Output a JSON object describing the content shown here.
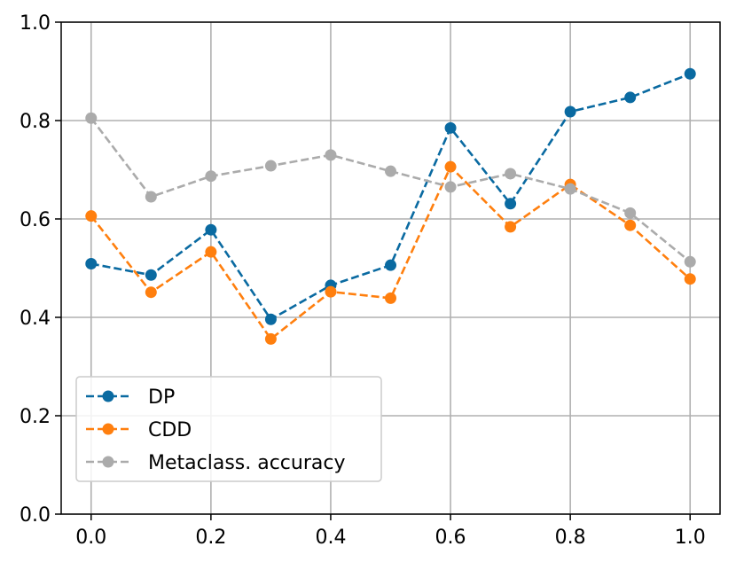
{
  "chart_data": {
    "type": "line",
    "title": "",
    "xlabel": "",
    "ylabel": "",
    "x": [
      0.0,
      0.1,
      0.2,
      0.3,
      0.4,
      0.5,
      0.6,
      0.7,
      0.8,
      0.9,
      1.0
    ],
    "xlim": [
      -0.05,
      1.05
    ],
    "ylim": [
      0.0,
      1.0
    ],
    "x_ticks": [
      "0.0",
      "0.2",
      "0.4",
      "0.6",
      "0.8",
      "1.0"
    ],
    "y_ticks": [
      "0.0",
      "0.2",
      "0.4",
      "0.6",
      "0.8",
      "1.0"
    ],
    "grid": true,
    "legend_position": "lower-left",
    "series": [
      {
        "name": "DP",
        "color": "#0a6aa1",
        "linestyle": "dashed",
        "marker": "circle",
        "values": [
          0.509,
          0.486,
          0.578,
          0.396,
          0.465,
          0.506,
          0.785,
          0.631,
          0.818,
          0.847,
          0.895
        ]
      },
      {
        "name": "CDD",
        "color": "#ff7f0e",
        "linestyle": "dashed",
        "marker": "circle",
        "values": [
          0.606,
          0.451,
          0.533,
          0.356,
          0.452,
          0.439,
          0.706,
          0.584,
          0.67,
          0.587,
          0.478
        ]
      },
      {
        "name": "Metaclass. accuracy",
        "color": "#ababab",
        "linestyle": "dashed",
        "marker": "circle",
        "values": [
          0.805,
          0.645,
          0.687,
          0.708,
          0.73,
          0.697,
          0.665,
          0.692,
          0.661,
          0.612,
          0.513
        ]
      }
    ]
  }
}
